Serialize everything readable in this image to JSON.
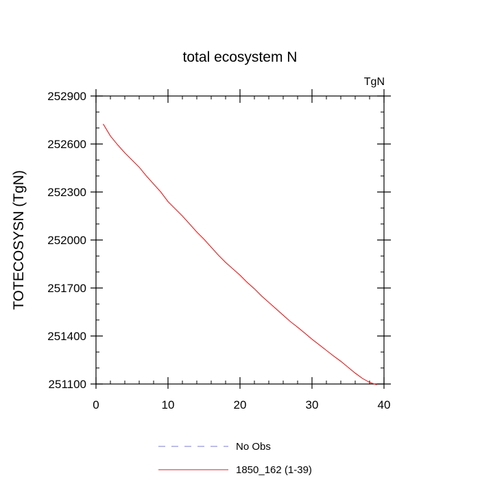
{
  "chart_data": {
    "type": "line",
    "title": "total ecosystem N",
    "units_label": "TgN",
    "ylabel": "TOTECOSYSN  (TgN)",
    "xlabel": "",
    "xlim": [
      0,
      40
    ],
    "ylim": [
      251100,
      252900
    ],
    "x_ticks": [
      0,
      10,
      20,
      30,
      40
    ],
    "y_ticks": [
      251100,
      251400,
      251700,
      252000,
      252300,
      252600,
      252900
    ],
    "grid": false,
    "legend_position": "bottom",
    "series": [
      {
        "name": "No Obs",
        "color": "#7b7bd6",
        "dash": "dashed",
        "x": [],
        "y": []
      },
      {
        "name": "1850_162 (1-39)",
        "color": "#e31a1c",
        "dash": "solid",
        "x": [
          1,
          2,
          3,
          4,
          5,
          6,
          7,
          8,
          9,
          10,
          11,
          12,
          13,
          14,
          15,
          16,
          17,
          18,
          19,
          20,
          21,
          22,
          23,
          24,
          25,
          26,
          27,
          28,
          29,
          30,
          31,
          32,
          33,
          34,
          35,
          36,
          37,
          38,
          39
        ],
        "y": [
          252725,
          252650,
          252595,
          252545,
          252500,
          252455,
          252400,
          252350,
          252300,
          252240,
          252195,
          252150,
          252100,
          252050,
          252005,
          251955,
          251905,
          251860,
          251820,
          251780,
          251735,
          251695,
          251650,
          251610,
          251570,
          251530,
          251490,
          251455,
          251418,
          251380,
          251345,
          251310,
          251275,
          251242,
          251205,
          251168,
          251135,
          251110,
          251095
        ]
      }
    ]
  }
}
